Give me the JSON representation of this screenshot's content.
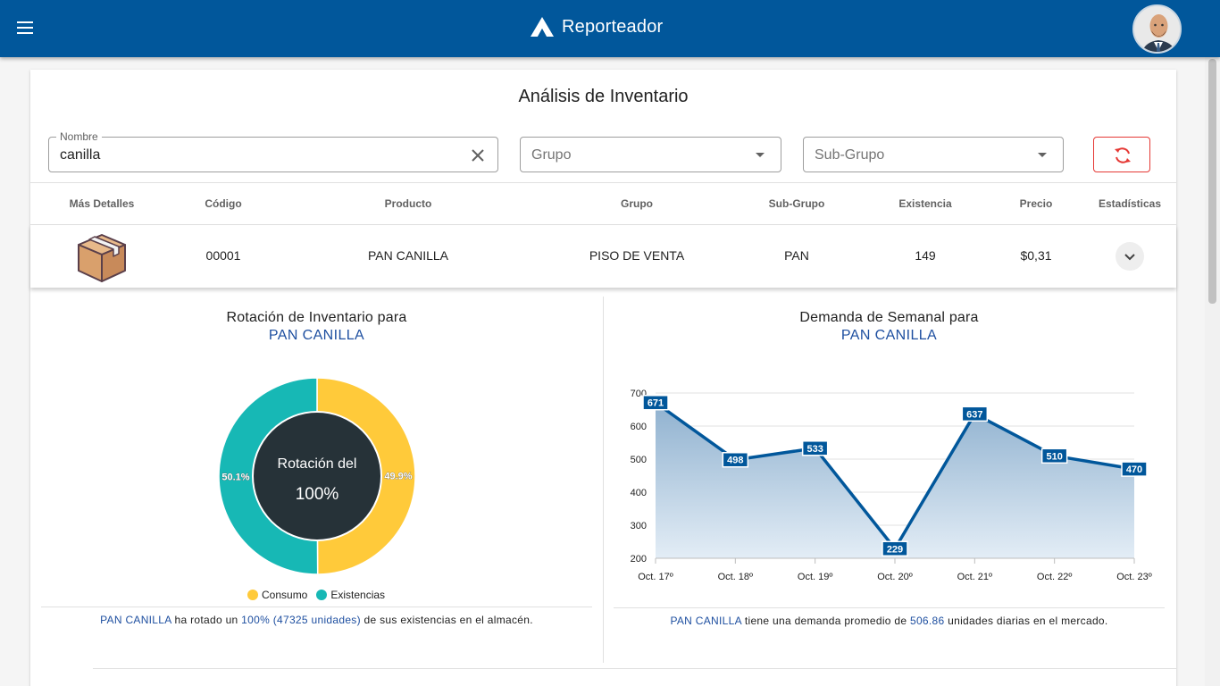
{
  "app": {
    "title": "Reporteador"
  },
  "page": {
    "title": "Análisis de Inventario"
  },
  "filters": {
    "nombre": {
      "label": "Nombre",
      "value": "canilla"
    },
    "grupo": {
      "placeholder": "Grupo"
    },
    "subgrupo": {
      "placeholder": "Sub-Grupo"
    }
  },
  "table": {
    "headers": [
      "Más Detalles",
      "Código",
      "Producto",
      "Grupo",
      "Sub-Grupo",
      "Existencia",
      "Precio",
      "Estadísticas"
    ],
    "row": {
      "codigo": "00001",
      "producto": "PAN CANILLA",
      "grupo": "PISO DE VENTA",
      "subgrupo": "PAN",
      "existencia": "149",
      "precio": "$0,31"
    }
  },
  "rotation": {
    "title": "Rotación de Inventario para",
    "product": "PAN CANILLA",
    "center_line1": "Rotación del",
    "center_line2": "100%",
    "caption": {
      "product": "PAN CANILLA",
      "text1": " ha rotado un ",
      "amount": "100% (47325 unidades)",
      "text2": " de sus existencias en el almacén."
    }
  },
  "demand": {
    "title": "Demanda de Semanal para",
    "product": "PAN CANILLA",
    "caption": {
      "product": "PAN CANILLA",
      "text1": " tiene una demanda promedio de ",
      "amount": "506.86",
      "text2": " unidades diarias en el mercado."
    }
  },
  "colors": {
    "header": "#01579b",
    "consumo": "#ffca3a",
    "existencias": "#17b8b5",
    "donut_center": "#263238",
    "line": "#01579b",
    "highlight": "#1e4fa0",
    "refresh": "#e53935"
  },
  "chart_data": [
    {
      "type": "pie",
      "categories": [
        "Consumo",
        "Existencias"
      ],
      "values": [
        49.9,
        50.1
      ],
      "labels": [
        "49.9%",
        "50.1%"
      ],
      "colors": [
        "#ffca3a",
        "#17b8b5"
      ],
      "legend": "bottom"
    },
    {
      "type": "area",
      "x": [
        "Oct. 17º",
        "Oct. 18º",
        "Oct. 19º",
        "Oct. 20º",
        "Oct. 21º",
        "Oct. 22º",
        "Oct. 23º"
      ],
      "values": [
        671,
        498,
        533,
        229,
        637,
        510,
        470
      ],
      "ylim": [
        200,
        700
      ],
      "yticks": [
        200,
        300,
        400,
        500,
        600,
        700
      ],
      "grid": true
    }
  ]
}
